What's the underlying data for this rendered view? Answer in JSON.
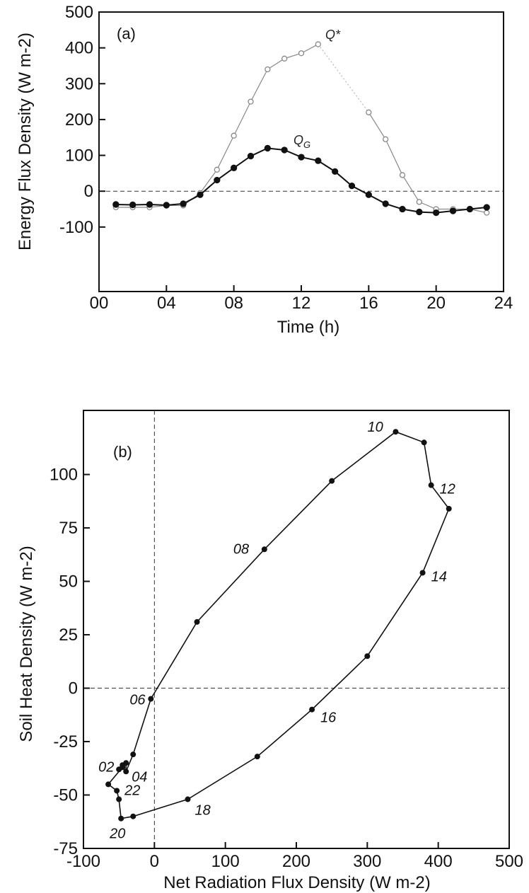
{
  "chart_data": [
    {
      "type": "line",
      "panel_label": "(a)",
      "xlabel": "Time (h)",
      "ylabel": "Energy Flux Density (W m-2)",
      "xlim": [
        0,
        24
      ],
      "ylim": [
        -280,
        500
      ],
      "x_ticks": [
        "00",
        "04",
        "08",
        "12",
        "16",
        "20",
        "24"
      ],
      "y_ticks": [
        "500",
        "400",
        "300",
        "200",
        "100",
        "0",
        "-100"
      ],
      "series": [
        {
          "name": "Q*",
          "marker": "open-circle",
          "x": [
            1,
            2,
            3,
            4,
            5,
            6,
            7,
            8,
            9,
            10,
            11,
            12,
            13,
            14,
            15,
            16,
            17,
            18,
            19,
            20,
            21,
            22,
            23
          ],
          "y": [
            -45,
            -45,
            -45,
            -40,
            -40,
            -5,
            60,
            155,
            250,
            340,
            370,
            385,
            410,
            null,
            null,
            220,
            145,
            45,
            -30,
            -50,
            -50,
            -50,
            -60
          ]
        },
        {
          "name": "QG",
          "marker": "filled-circle",
          "x": [
            1,
            2,
            3,
            4,
            5,
            6,
            7,
            8,
            9,
            10,
            11,
            12,
            13,
            14,
            15,
            16,
            17,
            18,
            19,
            20,
            21,
            22,
            23
          ],
          "y": [
            -37,
            -38,
            -37,
            -39,
            -35,
            -10,
            31,
            65,
            98,
            120,
            115,
            95,
            85,
            55,
            15,
            -10,
            -35,
            -50,
            -58,
            -60,
            -55,
            -50,
            -45
          ]
        }
      ]
    },
    {
      "type": "line",
      "panel_label": "(b)",
      "xlabel": "Net Radiation Flux Density (W m-2)",
      "ylabel": "Soil Heat Density (W m-2)",
      "xlim": [
        -100,
        500
      ],
      "ylim": [
        -75,
        130
      ],
      "x_ticks": [
        "-100",
        "0",
        "100",
        "200",
        "300",
        "400",
        "500"
      ],
      "y_ticks": [
        "100",
        "75",
        "50",
        "25",
        "0",
        "-25",
        "-50",
        "-75"
      ],
      "series": [
        {
          "x": [
            -45,
            -50,
            -45,
            -40,
            -40,
            -30,
            -5,
            60,
            155,
            250,
            340,
            380,
            390,
            415,
            378,
            300,
            222,
            145,
            47,
            -30,
            -47,
            -50,
            -53,
            -65,
            -45
          ],
          "y": [
            -37,
            -38,
            -36,
            -35,
            -39,
            -31,
            -5,
            31,
            65,
            97,
            120,
            115,
            95,
            84,
            54,
            15,
            -10,
            -32,
            -52,
            -60,
            -61,
            -52,
            -48,
            -45,
            -37
          ]
        }
      ],
      "hour_labels": [
        {
          "text": "02",
          "x": -45,
          "y": -37
        },
        {
          "text": "04",
          "x": -40,
          "y": -39
        },
        {
          "text": "06",
          "x": -5,
          "y": -5
        },
        {
          "text": "08",
          "x": 155,
          "y": 65
        },
        {
          "text": "10",
          "x": 340,
          "y": 120
        },
        {
          "text": "12",
          "x": 390,
          "y": 95
        },
        {
          "text": "14",
          "x": 378,
          "y": 54
        },
        {
          "text": "16",
          "x": 222,
          "y": -10
        },
        {
          "text": "18",
          "x": 47,
          "y": -52
        },
        {
          "text": "20",
          "x": -47,
          "y": -61
        },
        {
          "text": "22",
          "x": -50,
          "y": -48
        }
      ]
    }
  ]
}
